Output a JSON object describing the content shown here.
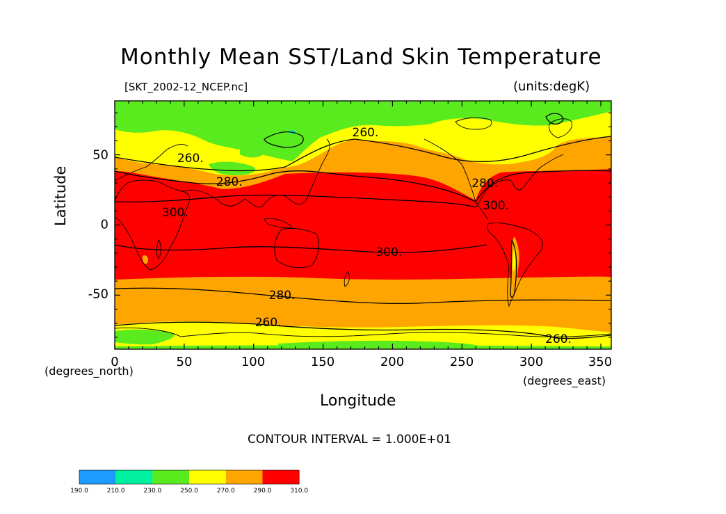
{
  "title": "Monthly Mean SST/Land Skin Temperature",
  "file_name": "[SKT_2002-12_NCEP.nc]",
  "units": "(units:degK)",
  "contour_interval": "CONTOUR INTERVAL = 1.000E+01",
  "chart_data": {
    "type": "heatmap",
    "xlabel": "Longitude",
    "ylabel": "Latitude",
    "x_unit_label": "(degrees_east)",
    "y_unit_label": "(degrees_north)",
    "xlim": [
      0,
      357.5
    ],
    "ylim": [
      -88.5,
      88.5
    ],
    "x_ticks": [
      "0",
      "50",
      "100",
      "150",
      "200",
      "250",
      "300",
      "350"
    ],
    "y_ticks": [
      "50",
      "0",
      "-50"
    ],
    "colorbar": {
      "labels": [
        "190.0",
        "210.0",
        "230.0",
        "250.0",
        "270.0",
        "290.0",
        "310.0"
      ],
      "colors": [
        "#1e9bff",
        "#00f0a0",
        "#5aeb1e",
        "#ffff00",
        "#ffa500",
        "#ff0000"
      ]
    },
    "contour_labels": [
      {
        "text": "260.",
        "lon": 52,
        "lat": 47
      },
      {
        "text": "280.",
        "lon": 80,
        "lat": 30
      },
      {
        "text": "260.",
        "lon": 178,
        "lat": 65
      },
      {
        "text": "280.",
        "lon": 264,
        "lat": 29
      },
      {
        "text": "300.",
        "lon": 272,
        "lat": 13
      },
      {
        "text": "300.",
        "lon": 41,
        "lat": 8
      },
      {
        "text": "300.",
        "lon": 195,
        "lat": -20
      },
      {
        "text": "280.",
        "lon": 118,
        "lat": -51
      },
      {
        "text": "260.",
        "lon": 108,
        "lat": -70
      },
      {
        "text": "260.",
        "lon": 317,
        "lat": -82
      }
    ]
  }
}
